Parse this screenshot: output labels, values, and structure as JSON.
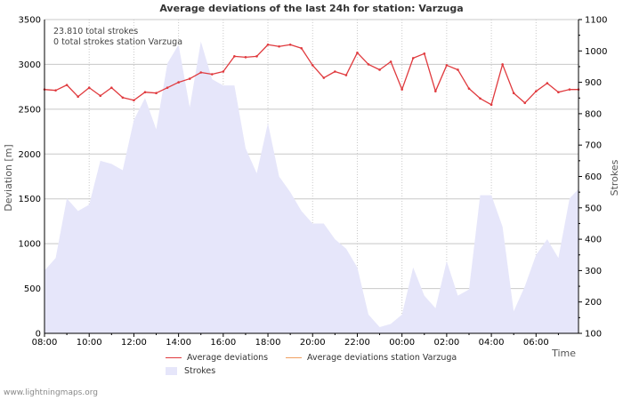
{
  "chart_data": {
    "type": "line",
    "title": "Average deviations of the last 24h for station: Varzuga",
    "xlabel": "Time",
    "ylabel": "Deviation  [m]",
    "y2label": "Strokes",
    "ylim": [
      0,
      3500
    ],
    "y2lim": [
      100,
      1100
    ],
    "xlim_hours": [
      0,
      23.9
    ],
    "yticks": [
      0,
      500,
      1000,
      1500,
      2000,
      2500,
      3000,
      3500
    ],
    "y2ticks": [
      100,
      200,
      300,
      400,
      500,
      600,
      700,
      800,
      900,
      1000,
      1100
    ],
    "xticks": [
      {
        "h": 0,
        "label": "08:00"
      },
      {
        "h": 2,
        "label": "10:00"
      },
      {
        "h": 4,
        "label": "12:00"
      },
      {
        "h": 6,
        "label": "14:00"
      },
      {
        "h": 8,
        "label": "16:00"
      },
      {
        "h": 10,
        "label": "18:00"
      },
      {
        "h": 12,
        "label": "20:00"
      },
      {
        "h": 14,
        "label": "22:00"
      },
      {
        "h": 16,
        "label": "00:00"
      },
      {
        "h": 18,
        "label": "02:00"
      },
      {
        "h": 20,
        "label": "04:00"
      },
      {
        "h": 22,
        "label": "06:00"
      }
    ],
    "annotations": [
      "23.810 total strokes",
      "0 total strokes station Varzuga"
    ],
    "series": [
      {
        "name": "Average deviations",
        "axis": "left",
        "color": "#e03a3e",
        "x_hours": [
          0,
          0.5,
          1,
          1.5,
          2,
          2.5,
          3,
          3.5,
          4,
          4.5,
          5,
          5.5,
          6,
          6.5,
          7,
          7.5,
          8,
          8.5,
          9,
          9.5,
          10,
          10.5,
          11,
          11.5,
          12,
          12.5,
          13,
          13.5,
          14,
          14.5,
          15,
          15.5,
          16,
          16.5,
          17,
          17.5,
          18,
          18.5,
          19,
          19.5,
          20,
          20.5,
          21,
          21.5,
          22,
          22.5,
          23,
          23.5,
          23.9
        ],
        "values": [
          2720,
          2710,
          2770,
          2640,
          2740,
          2650,
          2740,
          2630,
          2600,
          2690,
          2680,
          2740,
          2800,
          2840,
          2910,
          2890,
          2920,
          3090,
          3080,
          3090,
          3220,
          3200,
          3220,
          3180,
          2990,
          2850,
          2920,
          2880,
          3130,
          3000,
          2940,
          3030,
          2720,
          3070,
          3120,
          2700,
          2990,
          2940,
          2730,
          2620,
          2550,
          3000,
          2680,
          2570,
          2700,
          2790,
          2690,
          2720,
          2720
        ]
      },
      {
        "name": "Average deviations station Varzuga",
        "axis": "left",
        "color": "#f0a060",
        "x_hours": [],
        "values": []
      },
      {
        "name": "Strokes",
        "axis": "right",
        "type": "area",
        "color": "#e6e6fa",
        "x_hours": [
          0,
          0.5,
          1,
          1.5,
          2,
          2.5,
          3,
          3.5,
          4,
          4.5,
          5,
          5.5,
          6,
          6.5,
          7,
          7.5,
          8,
          8.5,
          9,
          9.5,
          10,
          10.5,
          11,
          11.5,
          12,
          12.5,
          13,
          13.5,
          14,
          14.5,
          15,
          15.5,
          16,
          16.5,
          17,
          17.5,
          18,
          18.5,
          19,
          19.5,
          20,
          20.5,
          21,
          21.5,
          22,
          22.5,
          23,
          23.5,
          23.9
        ],
        "values": [
          300,
          340,
          530,
          490,
          510,
          650,
          640,
          620,
          780,
          850,
          750,
          960,
          1020,
          820,
          1030,
          910,
          890,
          890,
          690,
          610,
          770,
          600,
          550,
          490,
          450,
          450,
          400,
          370,
          310,
          160,
          120,
          130,
          160,
          310,
          220,
          180,
          330,
          220,
          240,
          540,
          540,
          440,
          170,
          250,
          350,
          400,
          340,
          530,
          560
        ]
      }
    ]
  },
  "legend": {
    "avg": "Average deviations",
    "station": "Average deviations station Varzuga",
    "strokes": "Strokes"
  },
  "footer": {
    "credit": "www.lightningmaps.org"
  }
}
